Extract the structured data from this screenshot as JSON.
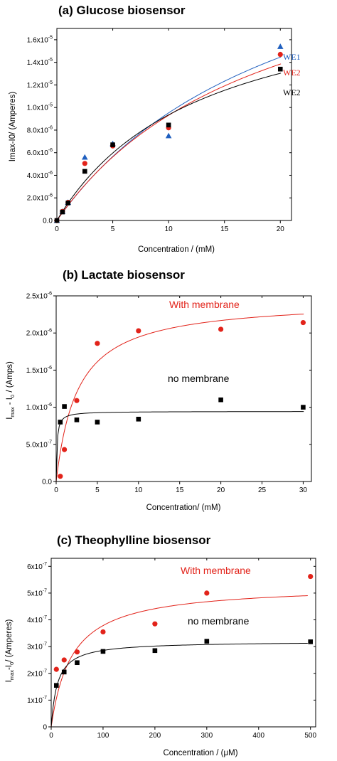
{
  "colors": {
    "black": "#000000",
    "red": "#e2231a",
    "blue": "#1f5fbf",
    "axis": "#000000"
  },
  "chart_data": [
    {
      "type": "scatter",
      "title": "(a) Glucose biosensor",
      "xlabel": "Concentration / (mM)",
      "ylabel": "Imax-I0/ (Amperes)",
      "xlim": [
        0,
        21
      ],
      "ylim": [
        0,
        1.7e-05
      ],
      "x_ticks": [
        0,
        5,
        10,
        15,
        20
      ],
      "x_tick_labels": [
        "0",
        "5",
        "10",
        "15",
        "20"
      ],
      "y_ticks": [
        0,
        2e-06,
        4e-06,
        6e-06,
        8e-06,
        1e-05,
        1.2e-05,
        1.4e-05,
        1.6e-05
      ],
      "y_tick_labels": [
        {
          "m": "0.0",
          "e": ""
        },
        {
          "m": "2.0x10",
          "e": "-6"
        },
        {
          "m": "4.0x10",
          "e": "-6"
        },
        {
          "m": "6.0x10",
          "e": "-6"
        },
        {
          "m": "8.0x10",
          "e": "-6"
        },
        {
          "m": "1.0x10",
          "e": "-5"
        },
        {
          "m": "1.2x10",
          "e": "-5"
        },
        {
          "m": "1.4x10",
          "e": "-5"
        },
        {
          "m": "1.6x10",
          "e": "-5"
        }
      ],
      "series": [
        {
          "name": "WE1",
          "marker": "triangle",
          "color": "#1f5fbf",
          "x": [
            0,
            0.5,
            1,
            2.5,
            5,
            10,
            20
          ],
          "y": [
            0,
            8e-07,
            1.6e-06,
            5.6e-06,
            6.8e-06,
            7.5e-06,
            1.54e-05
          ],
          "fit": {
            "vmax": 3e-05,
            "km": 21.5
          }
        },
        {
          "name": "WE2",
          "marker": "circle",
          "color": "#e2231a",
          "x": [
            0,
            0.5,
            1,
            2.5,
            5,
            10,
            20
          ],
          "y": [
            0,
            8e-07,
            1.6e-06,
            5.05e-06,
            6.6e-06,
            8.2e-06,
            1.47e-05
          ],
          "fit": {
            "vmax": 2.7e-05,
            "km": 19
          }
        },
        {
          "name": "WE2",
          "marker": "square",
          "color": "#000000",
          "x": [
            0,
            0.5,
            1,
            2.5,
            5,
            10,
            20
          ],
          "y": [
            0,
            7.5e-07,
            1.55e-06,
            4.35e-06,
            6.7e-06,
            8.45e-06,
            1.34e-05
          ],
          "fit": {
            "vmax": 2.15e-05,
            "km": 13
          }
        }
      ]
    },
    {
      "type": "scatter",
      "title": "(b) Lactate biosensor",
      "xlabel": "Concentration/ (mM)",
      "ylabel": "Imax - I0 / (Amps)",
      "xlim": [
        0,
        31
      ],
      "ylim": [
        0,
        2.5e-06
      ],
      "x_ticks": [
        0,
        5,
        10,
        15,
        20,
        25,
        30
      ],
      "x_tick_labels": [
        "0",
        "5",
        "10",
        "15",
        "20",
        "25",
        "30"
      ],
      "y_ticks": [
        0,
        5e-07,
        1e-06,
        1.5e-06,
        2e-06,
        2.5e-06
      ],
      "y_tick_labels": [
        {
          "m": "0.0",
          "e": ""
        },
        {
          "m": "5.0x10",
          "e": "-7"
        },
        {
          "m": "1.0x10",
          "e": "-6"
        },
        {
          "m": "1.5x10",
          "e": "-6"
        },
        {
          "m": "2.0x10",
          "e": "-6"
        },
        {
          "m": "2.5x10",
          "e": "-6"
        }
      ],
      "annotations": [
        "With membrane",
        "no membrane"
      ],
      "series": [
        {
          "name": "With membrane",
          "marker": "circle",
          "color": "#e2231a",
          "x": [
            0.5,
            1,
            2.5,
            5,
            10,
            20,
            30
          ],
          "y": [
            7e-08,
            4.3e-07,
            1.09e-06,
            1.86e-06,
            2.03e-06,
            2.05e-06,
            2.14e-06
          ],
          "fit": {
            "vmax": 2.45e-06,
            "km": 2.6
          }
        },
        {
          "name": "no membrane",
          "marker": "square",
          "color": "#000000",
          "x": [
            0.5,
            1,
            2.5,
            5,
            10,
            20,
            30
          ],
          "y": [
            8e-07,
            1.01e-06,
            8.3e-07,
            8e-07,
            8.4e-07,
            1.1e-06,
            1e-06
          ],
          "fit": {
            "vmax": 9.45e-07,
            "km": 0.1
          }
        }
      ]
    },
    {
      "type": "scatter",
      "title": "(c) Theophylline biosensor",
      "xlabel": "Concentration / (μM)",
      "ylabel": "Imax-I0/ (Amperes)",
      "xlim": [
        0,
        510
      ],
      "ylim": [
        0,
        6.3e-07
      ],
      "x_ticks": [
        0,
        100,
        200,
        300,
        400,
        500
      ],
      "x_tick_labels": [
        "0",
        "100",
        "200",
        "300",
        "400",
        "500"
      ],
      "y_ticks": [
        0,
        1e-07,
        2e-07,
        3e-07,
        4e-07,
        5e-07,
        6e-07
      ],
      "y_tick_labels": [
        {
          "m": "0",
          "e": ""
        },
        {
          "m": "1x10",
          "e": "-7"
        },
        {
          "m": "2x10",
          "e": "-7"
        },
        {
          "m": "3x10",
          "e": "-7"
        },
        {
          "m": "4x10",
          "e": "-7"
        },
        {
          "m": "5x10",
          "e": "-7"
        },
        {
          "m": "6x10",
          "e": "-7"
        }
      ],
      "annotations": [
        "With membrane",
        "no membrane"
      ],
      "series": [
        {
          "name": "With membrane",
          "marker": "circle",
          "color": "#e2231a",
          "x": [
            10,
            25,
            50,
            100,
            200,
            300,
            500
          ],
          "y": [
            2.15e-07,
            2.5e-07,
            2.8e-07,
            3.55e-07,
            3.85e-07,
            5e-07,
            5.62e-07
          ],
          "fit": {
            "vmax": 5.3e-07,
            "km": 40
          }
        },
        {
          "name": "no membrane",
          "marker": "square",
          "color": "#000000",
          "x": [
            10,
            25,
            50,
            100,
            200,
            300,
            500
          ],
          "y": [
            1.55e-07,
            2.05e-07,
            2.4e-07,
            2.82e-07,
            2.85e-07,
            3.2e-07,
            3.18e-07
          ],
          "fit": {
            "vmax": 3.2e-07,
            "km": 12
          }
        }
      ]
    }
  ]
}
